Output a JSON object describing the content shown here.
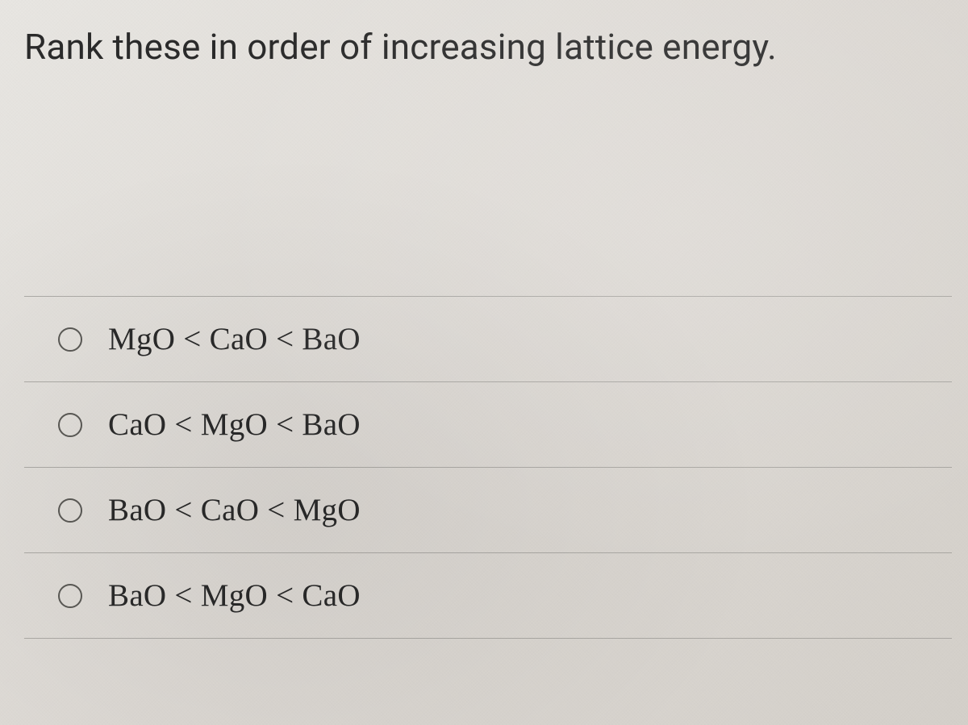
{
  "question": {
    "text": "Rank these in order of increasing lattice energy."
  },
  "options": [
    {
      "label": "MgO < CaO < BaO"
    },
    {
      "label": "CaO < MgO < BaO"
    },
    {
      "label": "BaO < CaO < MgO"
    },
    {
      "label": "BaO < MgO < CaO"
    }
  ],
  "styling": {
    "background_color": "#e0ddd7",
    "text_color": "#2a2a2a",
    "border_color": "#969490",
    "radio_border_color": "#5a5955",
    "question_fontsize": 44,
    "option_fontsize": 39,
    "radio_diameter": 30
  }
}
